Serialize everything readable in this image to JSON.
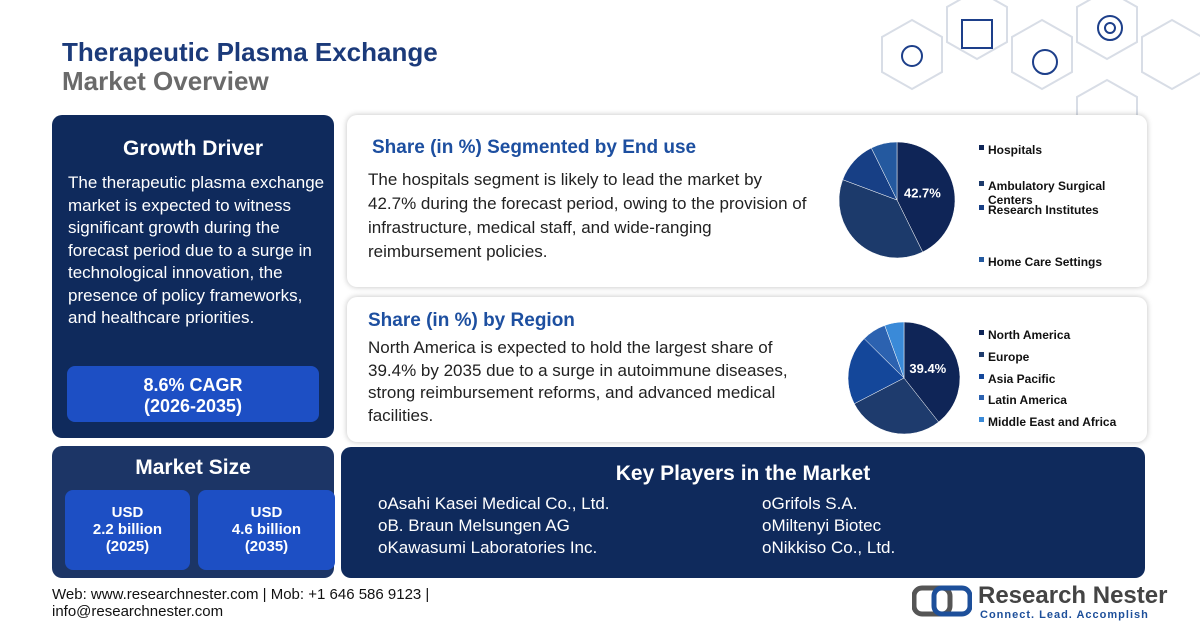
{
  "header": {
    "title": "Therapeutic Plasma Exchange",
    "subtitle": "Market Overview"
  },
  "growth_driver": {
    "title": "Growth Driver",
    "text": "The therapeutic plasma exchange market is expected to witness significant growth during the forecast period due to a surge in technological innovation, the presence of policy frameworks, and healthcare priorities.",
    "cagr": "8.6% CAGR",
    "cagr_period": "(2026-2035)"
  },
  "market_size": {
    "title": "Market Size",
    "items": [
      {
        "currency": "USD",
        "value": "2.2 billion",
        "year": "(2025)"
      },
      {
        "currency": "USD",
        "value": "4.6 billion",
        "year": "(2035)"
      }
    ]
  },
  "chart_data": [
    {
      "type": "pie",
      "title": "Share (in %) Segmented by End use",
      "description": "The hospitals segment is likely to lead the market by 42.7% during the forecast period, owing to the provision of infrastructure, medical staff, and wide-ranging reimbursement policies.",
      "categories": [
        "Hospitals",
        "Ambulatory Surgical Centers",
        "Research Institutes",
        "Home Care Settings"
      ],
      "values": [
        42.7,
        38,
        12,
        7.3
      ],
      "value_labels": [
        "42.7%",
        null,
        null,
        null
      ],
      "colors": [
        "#0f2557",
        "#1c3a6b",
        "#173f85",
        "#24599f"
      ]
    },
    {
      "type": "pie",
      "title": "Share (in %) by Region",
      "description": "North America is expected to hold the largest share of 39.4% by 2035 due to a surge in autoimmune diseases, strong reimbursement reforms, and advanced medical facilities.",
      "categories": [
        "North America",
        "Europe",
        "Asia Pacific",
        "Latin America",
        "Middle East and Africa"
      ],
      "values": [
        39.4,
        28,
        20,
        7,
        5.6
      ],
      "value_labels": [
        "39.4%",
        null,
        null,
        null,
        null
      ],
      "colors": [
        "#0f2557",
        "#1e3b6d",
        "#14479a",
        "#2c62b0",
        "#3a8ad8"
      ]
    }
  ],
  "key_players": {
    "title": "Key Players in the Market",
    "players": [
      "Asahi Kasei Medical Co., Ltd.",
      "B. Braun Melsungen AG",
      "Kawasumi Laboratories Inc.",
      "Grifols S.A.",
      "Miltenyi Biotec",
      "Nikkiso Co., Ltd."
    ],
    "bullet": "o"
  },
  "footer": {
    "web": "Web: www.researchnester.com",
    "mob": "Mob: +1 646 586 9123",
    "email": "info@researchnester.com"
  },
  "logo": {
    "name": "Research Nester",
    "tagline": "Connect. Lead. Accomplish"
  }
}
